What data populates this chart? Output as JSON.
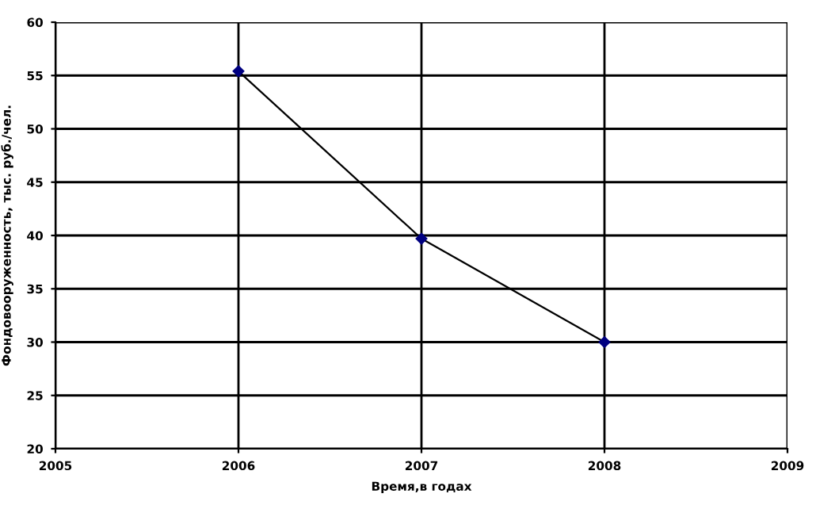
{
  "chart_data": {
    "type": "line",
    "xlabel": "Время,в годах",
    "ylabel": "Фондовооруженность, тыс. руб./чел.",
    "x": [
      2006,
      2007,
      2008
    ],
    "series": [
      {
        "color": "#000000",
        "values": [
          55.4,
          39.7,
          30.0
        ]
      }
    ],
    "marker": "diamond",
    "line_style": "solid",
    "xlim": [
      2005,
      2009
    ],
    "xticks": [
      2005,
      2006,
      2007,
      2008,
      2009
    ],
    "ylim": [
      20,
      60
    ],
    "yticks": [
      20,
      25,
      30,
      35,
      40,
      45,
      50,
      55,
      60
    ],
    "grid": true
  }
}
